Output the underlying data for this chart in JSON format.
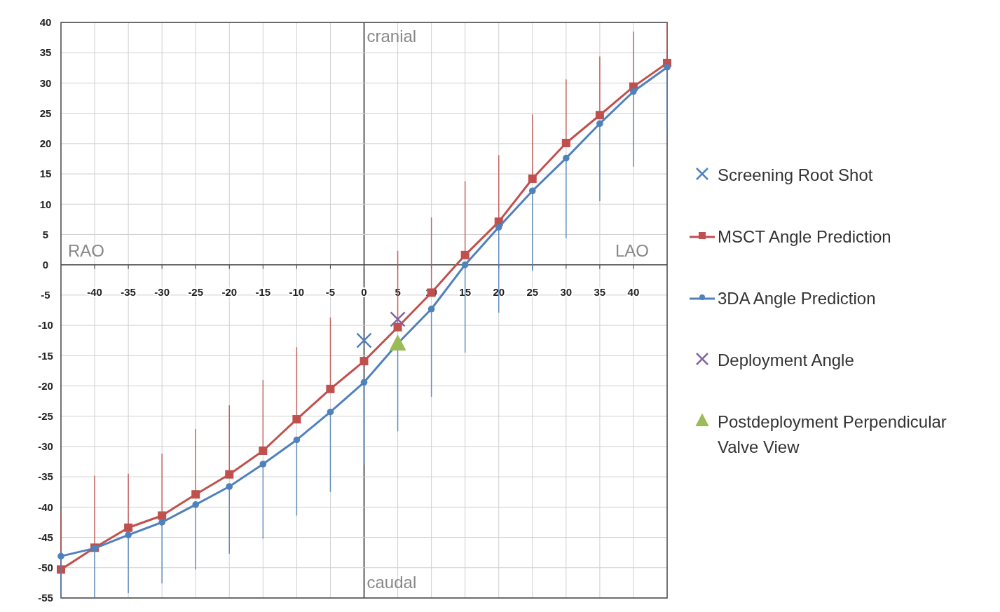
{
  "chart_data": {
    "type": "line",
    "x": [
      -45,
      -40,
      -35,
      -30,
      -25,
      -20,
      -15,
      -10,
      -5,
      0,
      5,
      10,
      15,
      20,
      25,
      30,
      35,
      40,
      45
    ],
    "xlim": [
      -45,
      45
    ],
    "ylim": [
      -55,
      40
    ],
    "xticks": [
      -40,
      -35,
      -30,
      -25,
      -20,
      -15,
      -10,
      -5,
      0,
      5,
      10,
      15,
      20,
      25,
      30,
      35,
      40
    ],
    "yticks": [
      -55,
      -50,
      -45,
      -40,
      -35,
      -30,
      -25,
      -20,
      -15,
      -10,
      -5,
      0,
      5,
      10,
      15,
      20,
      25,
      30,
      35,
      40
    ],
    "grid": true,
    "legend": "right",
    "annotations": [
      "cranial",
      "caudal",
      "RAO",
      "LAO"
    ],
    "series": [
      {
        "name": "Screening Root Shot",
        "type": "scatter",
        "marker": "cross",
        "color": "#4f81bd",
        "values": [
          null,
          null,
          null,
          null,
          null,
          null,
          null,
          null,
          null,
          -12.5,
          null,
          null,
          null,
          null,
          null,
          null,
          null,
          null,
          null
        ]
      },
      {
        "name": "MSCT Angle Prediction",
        "marker": "square",
        "color": "#c0504d",
        "values": [
          -50.3,
          -46.7,
          -43.4,
          -41.4,
          -37.9,
          -34.6,
          -30.7,
          -25.5,
          -20.5,
          -15.9,
          -10.3,
          -4.6,
          1.6,
          7.1,
          14.2,
          20.1,
          24.7,
          29.4,
          33.3
        ],
        "errors": [
          [
            -50.3,
            -41
          ],
          [
            -46.7,
            -34.8
          ],
          [
            -43.4,
            -34.5
          ],
          [
            -41.4,
            -31.2
          ],
          [
            -37.9,
            -27.1
          ],
          [
            -34.6,
            -23.2
          ],
          [
            -30.7,
            -19
          ],
          [
            -25.5,
            -13.6
          ],
          [
            -20.5,
            -8.7
          ],
          null,
          [
            -10.3,
            2.3
          ],
          [
            -4.6,
            7.8
          ],
          [
            1.6,
            13.8
          ],
          [
            7.1,
            18.1
          ],
          [
            14.2,
            24.8
          ],
          [
            20.1,
            30.6
          ],
          [
            24.7,
            34.4
          ],
          [
            29.4,
            38.5
          ],
          [
            33.3,
            40
          ]
        ]
      },
      {
        "name": "3DA Angle Prediction",
        "marker": "circle",
        "color": "#4f81bd",
        "values": [
          -48.1,
          -46.8,
          -44.6,
          -42.5,
          -39.6,
          -36.6,
          -32.9,
          -28.9,
          -24.3,
          -19.4,
          -13,
          -7.3,
          0,
          6.2,
          12.2,
          17.6,
          23.3,
          28.6,
          32.6
        ],
        "errors": [
          [
            -55,
            -48.1
          ],
          [
            -55,
            -46.8
          ],
          [
            -54.2,
            -44.6
          ],
          [
            -52.6,
            -42.5
          ],
          [
            -50.3,
            -39.6
          ],
          [
            -47.7,
            -36.6
          ],
          [
            -45.2,
            -32.9
          ],
          [
            -41.4,
            -28.9
          ],
          [
            -37.5,
            -24.3
          ],
          [
            -33,
            -19.4
          ],
          [
            -27.5,
            -13
          ],
          [
            -21.8,
            -7.3
          ],
          [
            -14.5,
            0
          ],
          [
            -7.9,
            6.2
          ],
          [
            -1,
            12.2
          ],
          [
            4.4,
            17.6
          ],
          [
            10.5,
            23.3
          ],
          [
            16.2,
            28.6
          ],
          [
            21.4,
            32.6
          ]
        ]
      },
      {
        "name": "Deployment Angle",
        "type": "scatter",
        "marker": "cross",
        "color": "#8064a2",
        "values": [
          null,
          null,
          null,
          null,
          null,
          null,
          null,
          null,
          null,
          null,
          -9,
          null,
          null,
          null,
          null,
          null,
          null,
          null,
          null
        ]
      },
      {
        "name": "Postdeployment Perpendicular Valve View",
        "type": "scatter",
        "marker": "triangle",
        "color": "#9bbb59",
        "values": [
          null,
          null,
          null,
          null,
          null,
          null,
          null,
          null,
          null,
          null,
          -13,
          null,
          null,
          null,
          null,
          null,
          null,
          null,
          null
        ]
      }
    ]
  }
}
